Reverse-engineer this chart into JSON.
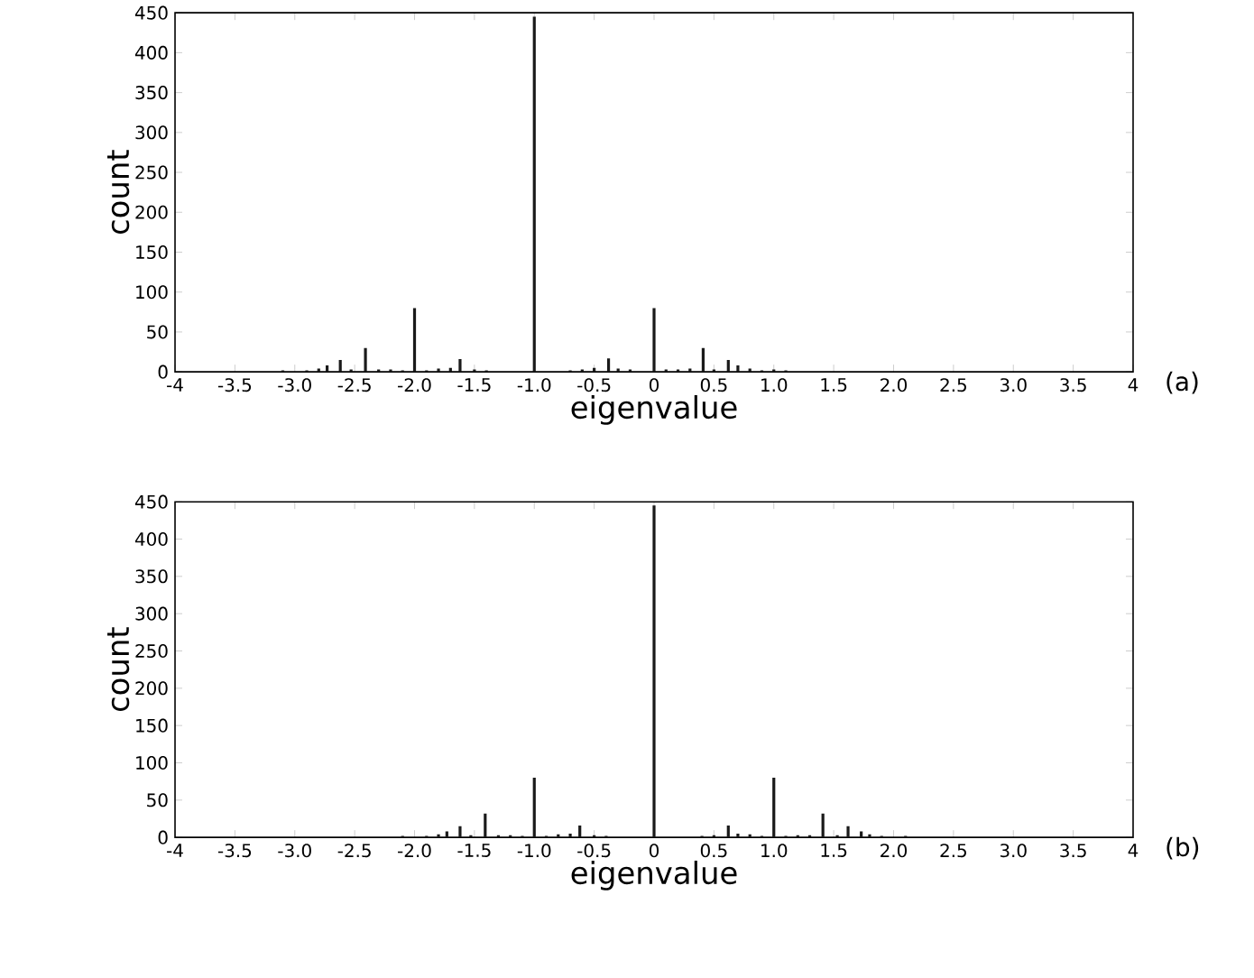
{
  "chart_data": [
    {
      "type": "bar",
      "xlabel": "eigenvalue",
      "ylabel": "count",
      "annotations": [
        "(a)"
      ],
      "x": [
        -3.1,
        -2.9,
        -2.8,
        -2.73,
        -2.62,
        -2.53,
        -2.41,
        -2.3,
        -2.2,
        -2.1,
        -2.0,
        -1.9,
        -1.8,
        -1.7,
        -1.62,
        -1.5,
        -1.4,
        -1.0,
        -0.7,
        -0.6,
        -0.5,
        -0.38,
        -0.3,
        -0.2,
        0,
        0.1,
        0.2,
        0.3,
        0.41,
        0.5,
        0.62,
        0.7,
        0.8,
        0.9,
        1.0,
        1.1
      ],
      "values": [
        2,
        2,
        4,
        8,
        15,
        3,
        30,
        3,
        3,
        2,
        80,
        2,
        4,
        5,
        16,
        3,
        2,
        445,
        2,
        3,
        5,
        17,
        4,
        3,
        80,
        3,
        3,
        4,
        30,
        3,
        15,
        8,
        4,
        2,
        3,
        2
      ],
      "color": "#1a1a1a",
      "xlim": [
        -4,
        4
      ],
      "ylim": [
        0,
        450
      ],
      "xticks": [
        -4,
        -3.5,
        {
          "value": -3,
          "label": "-3.0"
        },
        -2.5,
        {
          "value": -2,
          "label": "-2.0"
        },
        -1.5,
        {
          "value": -1,
          "label": "-1.0"
        },
        -0.5,
        0,
        0.5,
        {
          "value": 1,
          "label": "1.0"
        },
        1.5,
        {
          "value": 2,
          "label": "2.0"
        },
        2.5,
        {
          "value": 3,
          "label": "3.0"
        },
        3.5,
        4
      ],
      "yticks": [
        0,
        50,
        100,
        150,
        200,
        250,
        300,
        350,
        400,
        450
      ]
    },
    {
      "type": "bar",
      "xlabel": "eigenvalue",
      "ylabel": "count",
      "annotations": [
        "(b)"
      ],
      "x": [
        -2.1,
        -1.9,
        -1.8,
        -1.73,
        -1.62,
        -1.53,
        -1.41,
        -1.3,
        -1.2,
        -1.1,
        -1.0,
        -0.9,
        -0.8,
        -0.7,
        -0.62,
        -0.5,
        -0.4,
        0,
        0.4,
        0.5,
        0.62,
        0.7,
        0.8,
        0.9,
        1.0,
        1.1,
        1.2,
        1.3,
        1.41,
        1.53,
        1.62,
        1.73,
        1.8,
        1.9,
        2.1
      ],
      "values": [
        2,
        2,
        4,
        8,
        15,
        3,
        32,
        3,
        3,
        2,
        80,
        2,
        4,
        5,
        16,
        3,
        2,
        445,
        2,
        3,
        16,
        5,
        4,
        2,
        80,
        2,
        3,
        3,
        32,
        3,
        15,
        8,
        4,
        2,
        2
      ],
      "color": "#1a1a1a",
      "xlim": [
        -4,
        4
      ],
      "ylim": [
        0,
        450
      ],
      "xticks": [
        -4,
        -3.5,
        {
          "value": -3,
          "label": "-3.0"
        },
        -2.5,
        {
          "value": -2,
          "label": "-2.0"
        },
        -1.5,
        {
          "value": -1,
          "label": "-1.0"
        },
        -0.5,
        0,
        0.5,
        {
          "value": 1,
          "label": "1.0"
        },
        1.5,
        {
          "value": 2,
          "label": "2.0"
        },
        2.5,
        {
          "value": 3,
          "label": "3.0"
        },
        3.5,
        4
      ],
      "yticks": [
        0,
        50,
        100,
        150,
        200,
        250,
        300,
        350,
        400,
        450
      ]
    }
  ]
}
